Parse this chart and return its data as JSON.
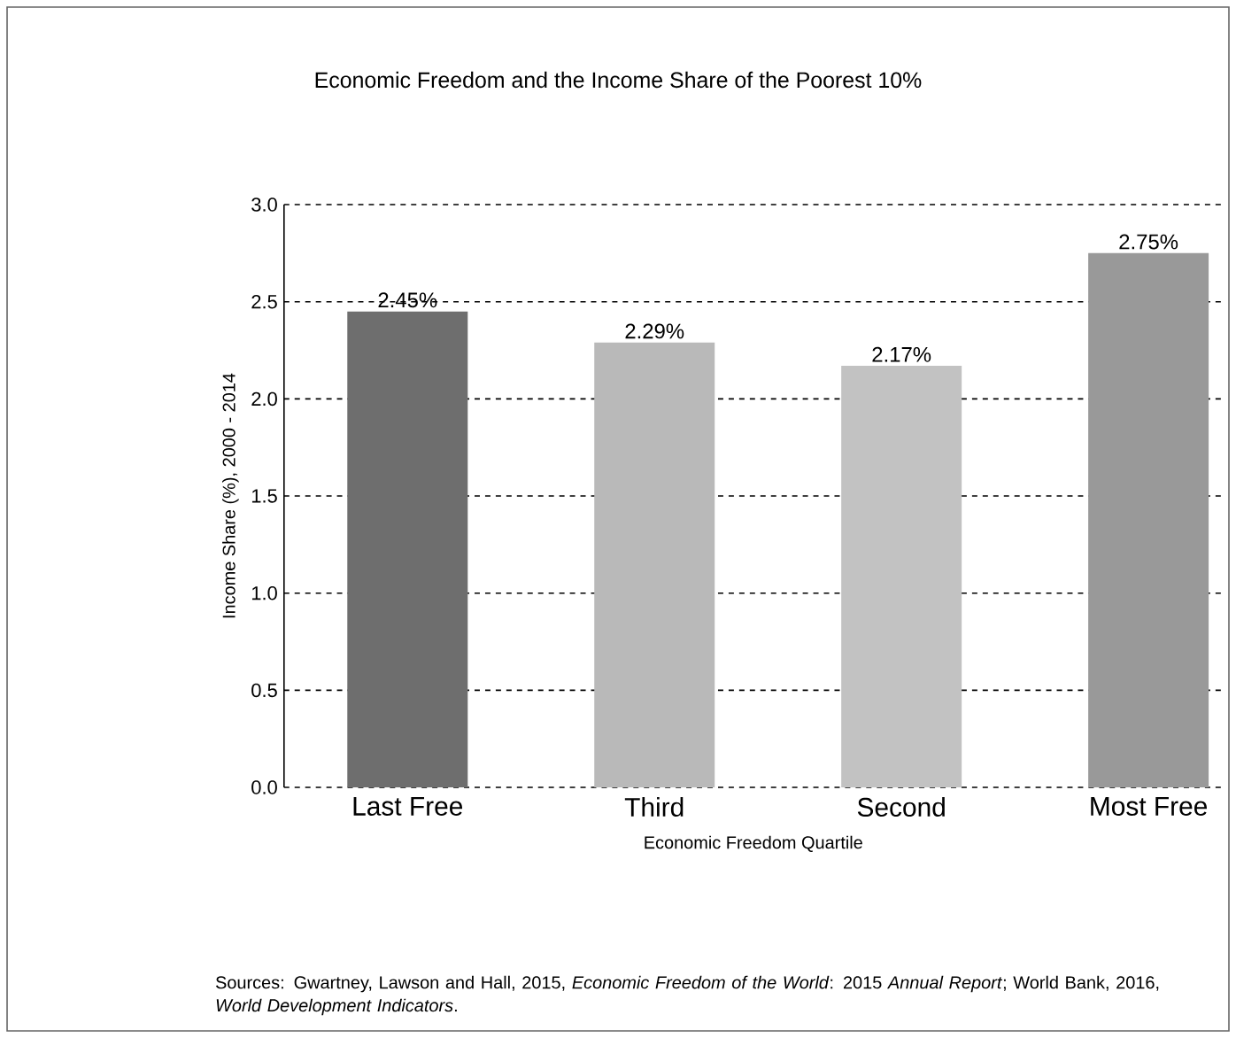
{
  "chart_data": {
    "type": "bar",
    "title": "Economic Freedom and the Income Share of the Poorest 10%",
    "xlabel": "Economic Freedom Quartile",
    "ylabel": "Income Share (%), 2000 - 2014",
    "categories": [
      "Last Free",
      "Third",
      "Second",
      "Most Free"
    ],
    "values": [
      2.45,
      2.29,
      2.17,
      2.75
    ],
    "colors": [
      "#6e6e6e",
      "#b9b9b9",
      "#c2c2c2",
      "#999999"
    ],
    "value_labels": [
      "2.45%",
      "2.29%",
      "2.17%",
      "2.75%"
    ],
    "ylim": [
      0,
      3
    ],
    "yticks": [
      {
        "value": 0,
        "label": "0.0"
      },
      {
        "value": 0.5,
        "label": "0.5"
      },
      {
        "value": 1,
        "label": "1.0"
      },
      {
        "value": 1.5,
        "label": "1.5"
      },
      {
        "value": 2,
        "label": "2.0"
      },
      {
        "value": 2.5,
        "label": "2.5"
      },
      {
        "value": 3,
        "label": "3.0"
      }
    ],
    "grid": "y",
    "annotations": [
      "Sources: Gwartney, Lawson and Hall, 2015, *Economic Freedom of the World*: 2015 *Annual Report*; World Bank, 2016, *World Development Indicators*."
    ]
  }
}
